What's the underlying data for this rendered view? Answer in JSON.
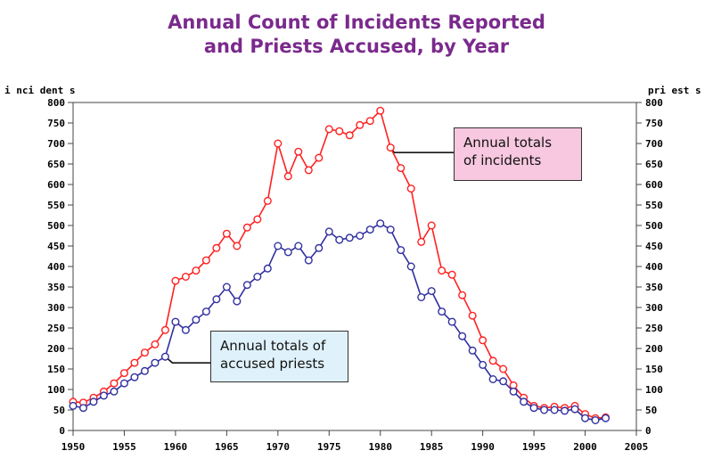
{
  "title_line1": "Annual Count of Incidents Reported",
  "title_line2": "and Priests Accused, by Year",
  "callouts": {
    "incidents": [
      "Annual totals",
      "of incidents"
    ],
    "priests": [
      "Annual totals of",
      "accused priests"
    ]
  },
  "chart_data": {
    "type": "line",
    "title": "Annual Count of Incidents Reported and Priests Accused, by Year",
    "ylabel_left": "i nci dent s",
    "ylabel_right": "pri est s",
    "xlim": [
      1950,
      2005
    ],
    "ylim": [
      0,
      800
    ],
    "xticks": [
      1950,
      1955,
      1960,
      1965,
      1970,
      1975,
      1980,
      1985,
      1990,
      1995,
      2000,
      2005
    ],
    "yticks": [
      0,
      50,
      100,
      150,
      200,
      250,
      300,
      350,
      400,
      450,
      500,
      550,
      600,
      650,
      700,
      750,
      800
    ],
    "grid": false,
    "x": [
      1950,
      1951,
      1952,
      1953,
      1954,
      1955,
      1956,
      1957,
      1958,
      1959,
      1960,
      1961,
      1962,
      1963,
      1964,
      1965,
      1966,
      1967,
      1968,
      1969,
      1970,
      1971,
      1972,
      1973,
      1974,
      1975,
      1976,
      1977,
      1978,
      1979,
      1980,
      1981,
      1982,
      1983,
      1984,
      1985,
      1986,
      1987,
      1988,
      1989,
      1990,
      1991,
      1992,
      1993,
      1994,
      1995,
      1996,
      1997,
      1998,
      1999,
      2000,
      2001,
      2002
    ],
    "series": [
      {
        "name": "Annual totals of incidents",
        "color": "#ff2020",
        "values": [
          70,
          68,
          80,
          95,
          115,
          140,
          165,
          190,
          210,
          245,
          365,
          375,
          390,
          415,
          445,
          480,
          450,
          495,
          515,
          560,
          700,
          620,
          680,
          635,
          665,
          735,
          730,
          720,
          745,
          755,
          780,
          690,
          640,
          590,
          460,
          500,
          390,
          380,
          330,
          280,
          220,
          170,
          150,
          110,
          80,
          60,
          55,
          58,
          55,
          60,
          40,
          30,
          32
        ]
      },
      {
        "name": "Annual totals of accused priests",
        "color": "#3030a0",
        "values": [
          60,
          55,
          70,
          85,
          95,
          115,
          130,
          145,
          165,
          180,
          265,
          245,
          270,
          290,
          320,
          350,
          315,
          355,
          375,
          395,
          450,
          435,
          450,
          415,
          445,
          485,
          465,
          470,
          475,
          490,
          505,
          490,
          440,
          400,
          325,
          340,
          290,
          265,
          230,
          195,
          160,
          125,
          120,
          95,
          70,
          55,
          50,
          50,
          48,
          52,
          30,
          25,
          30
        ]
      }
    ]
  }
}
